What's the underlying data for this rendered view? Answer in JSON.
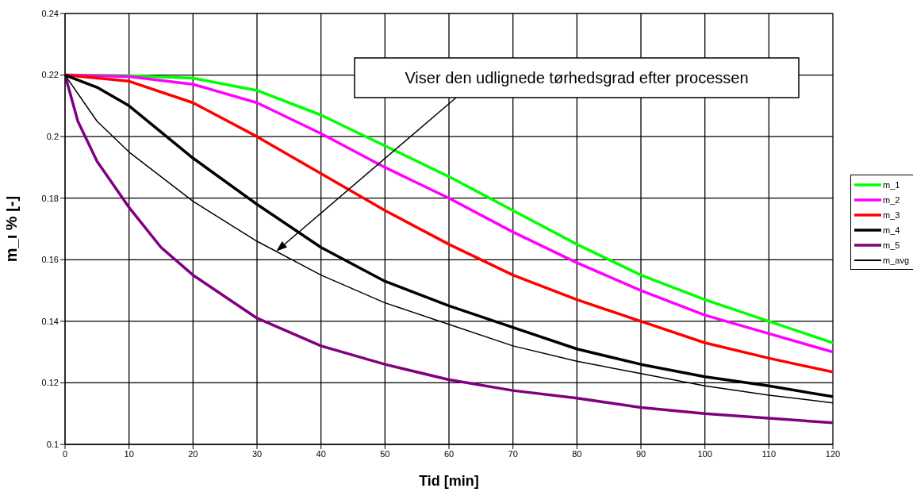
{
  "chart_data": {
    "type": "line",
    "xlabel": "Tid [min]",
    "ylabel": "m_i % [-]",
    "xlim": [
      0,
      120
    ],
    "xticks": [
      0,
      10,
      20,
      30,
      40,
      50,
      60,
      70,
      80,
      90,
      100,
      110,
      120
    ],
    "ylim": [
      0.1,
      0.24
    ],
    "yticks": [
      0.1,
      0.12,
      0.14,
      0.16,
      0.18,
      0.2,
      0.22,
      0.24
    ],
    "grid": true,
    "legend": "right",
    "marker": "none",
    "line_style": "solid",
    "annotations": [
      "Viser den udlignede tørhedsgrad efter processen"
    ],
    "series": [
      {
        "name": "m_1",
        "color": "#00ff00",
        "x": [
          0,
          10,
          20,
          30,
          40,
          50,
          60,
          70,
          80,
          90,
          100,
          110,
          120
        ],
        "values": [
          0.22,
          0.2198,
          0.219,
          0.215,
          0.207,
          0.197,
          0.187,
          0.176,
          0.165,
          0.155,
          0.147,
          0.14,
          0.133
        ]
      },
      {
        "name": "m_2",
        "color": "#ff00ff",
        "x": [
          0,
          10,
          20,
          30,
          40,
          50,
          60,
          70,
          80,
          90,
          100,
          110,
          120
        ],
        "values": [
          0.22,
          0.2195,
          0.217,
          0.211,
          0.201,
          0.19,
          0.18,
          0.169,
          0.159,
          0.15,
          0.142,
          0.136,
          0.13
        ]
      },
      {
        "name": "m_3",
        "color": "#ff0000",
        "x": [
          0,
          10,
          20,
          30,
          40,
          50,
          60,
          70,
          80,
          90,
          100,
          110,
          120
        ],
        "values": [
          0.22,
          0.218,
          0.211,
          0.2,
          0.188,
          0.176,
          0.165,
          0.155,
          0.147,
          0.14,
          0.133,
          0.128,
          0.1235
        ]
      },
      {
        "name": "m_4",
        "color": "#000000",
        "x": [
          0,
          5,
          10,
          20,
          30,
          40,
          50,
          60,
          70,
          80,
          90,
          100,
          110,
          120
        ],
        "values": [
          0.22,
          0.216,
          0.21,
          0.193,
          0.178,
          0.164,
          0.153,
          0.145,
          0.138,
          0.131,
          0.126,
          0.122,
          0.119,
          0.1155
        ]
      },
      {
        "name": "m_5",
        "color": "#800080",
        "x": [
          0,
          2,
          5,
          10,
          15,
          20,
          30,
          40,
          50,
          60,
          70,
          80,
          90,
          100,
          110,
          120
        ],
        "values": [
          0.22,
          0.205,
          0.192,
          0.177,
          0.164,
          0.155,
          0.141,
          0.132,
          0.126,
          0.121,
          0.1175,
          0.115,
          0.112,
          0.11,
          0.1085,
          0.107
        ]
      },
      {
        "name": "m_avg",
        "color": "#000000",
        "x": [
          0,
          5,
          10,
          20,
          30,
          40,
          50,
          60,
          70,
          80,
          90,
          100,
          110,
          120
        ],
        "values": [
          0.22,
          0.205,
          0.195,
          0.179,
          0.166,
          0.155,
          0.146,
          0.139,
          0.132,
          0.127,
          0.123,
          0.119,
          0.116,
          0.1135
        ]
      }
    ]
  }
}
